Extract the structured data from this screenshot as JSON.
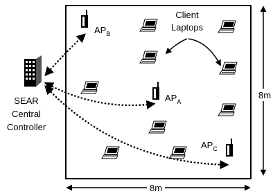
{
  "client_label": [
    "Client",
    "Laptops"
  ],
  "controller_label": [
    "SEAR",
    "Central",
    "Controller"
  ],
  "access_points": [
    {
      "name": "AP",
      "subscript": "B"
    },
    {
      "name": "AP",
      "subscript": "A"
    },
    {
      "name": "AP",
      "subscript": "C"
    }
  ],
  "dimensions": {
    "height": "8m",
    "width": "8m"
  }
}
